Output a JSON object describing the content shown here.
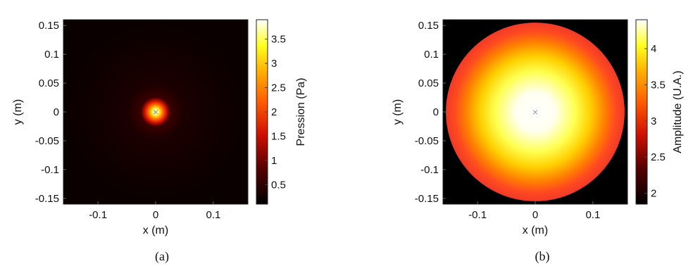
{
  "chart_data": [
    {
      "id": "a",
      "type": "heatmap",
      "caption": "(a)",
      "xlabel": "x (m)",
      "ylabel": "y (m)",
      "xlim": [
        -0.16,
        0.16
      ],
      "ylim": [
        -0.16,
        0.16
      ],
      "x_ticks": [
        -0.1,
        0,
        0.1
      ],
      "x_tick_labels": [
        "-0.1",
        "0",
        "0.1"
      ],
      "y_ticks": [
        0.15,
        0.1,
        0.05,
        0,
        -0.05,
        -0.1,
        -0.15
      ],
      "y_tick_labels": [
        "0.15",
        "0.1",
        "0.05",
        "0",
        "-0.05",
        "-0.1",
        "-0.15"
      ],
      "colorbar": {
        "label": "Pression (Pa)",
        "range": [
          0.1,
          3.9
        ],
        "ticks": [
          3.5,
          3,
          2.5,
          2,
          1.5,
          1,
          0.5
        ],
        "tick_labels": [
          "3.5",
          "3",
          "2.5",
          "2",
          "1.5",
          "1",
          "0.5"
        ],
        "colormap": "hot"
      },
      "field": {
        "description_values": "localized peak at center",
        "peak_value": 3.9,
        "peak_x": 0,
        "peak_y": 0,
        "background_value": 0.1
      },
      "marker": {
        "symbol": "×",
        "x": 0,
        "y": 0
      }
    },
    {
      "id": "b",
      "type": "heatmap",
      "caption": "(b)",
      "xlabel": "x (m)",
      "ylabel": "y (m)",
      "xlim": [
        -0.16,
        0.16
      ],
      "ylim": [
        -0.16,
        0.16
      ],
      "x_ticks": [
        -0.1,
        0,
        0.1
      ],
      "x_tick_labels": [
        "-0.1",
        "0",
        "0.1"
      ],
      "y_ticks": [
        0.15,
        0.1,
        0.05,
        0,
        -0.05,
        -0.1,
        -0.15
      ],
      "y_tick_labels": [
        "0.15",
        "0.1",
        "0.05",
        "0",
        "-0.05",
        "-0.1",
        "-0.15"
      ],
      "colorbar": {
        "label": "Amplitude (U.A.)",
        "range": [
          1.85,
          4.4
        ],
        "ticks": [
          4,
          3.5,
          3,
          2.5,
          2
        ],
        "tick_labels": [
          "4",
          "3.5",
          "3",
          "2.5",
          "2"
        ],
        "colormap": "hot"
      },
      "field": {
        "disk_radius": 0.155,
        "center_value": 4.4,
        "edge_value": 2.6,
        "outside_value": 1.85
      },
      "marker": {
        "symbol": "×",
        "x": 0,
        "y": 0
      }
    }
  ]
}
